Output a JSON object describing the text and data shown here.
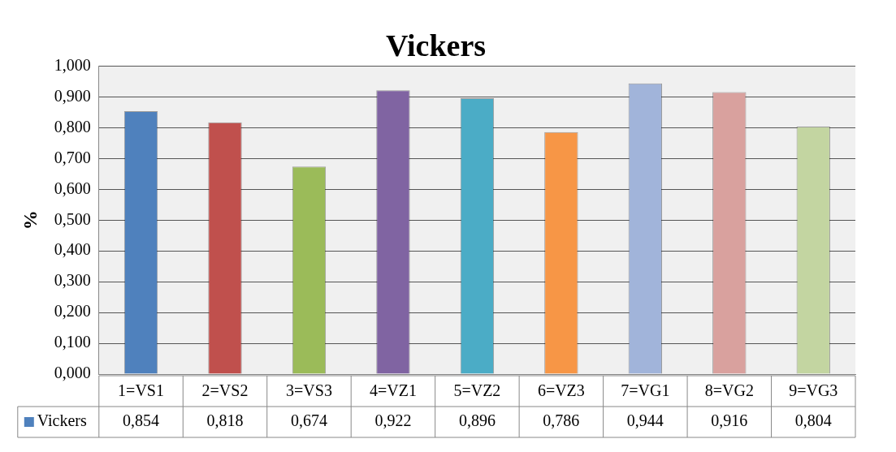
{
  "chart_data": {
    "type": "bar",
    "title": "Vickers",
    "ylabel": "%",
    "categories": [
      "1=VS1",
      "2=VS2",
      "3=VS3",
      "4=VZ1",
      "5=VZ2",
      "6=VZ3",
      "7=VG1",
      "8=VG2",
      "9=VG3"
    ],
    "series": [
      {
        "name": "Vickers",
        "color": "#4f81bd",
        "colors": [
          "#4f81bd",
          "#c0504d",
          "#9bbb59",
          "#8064a2",
          "#4bacc6",
          "#f79646",
          "#a1b4da",
          "#d9a19e",
          "#c3d5a1"
        ],
        "values": [
          0.854,
          0.818,
          0.674,
          0.922,
          0.896,
          0.786,
          0.944,
          0.916,
          0.804
        ],
        "value_labels": [
          "0,854",
          "0,818",
          "0,674",
          "0,922",
          "0,896",
          "0,786",
          "0,944",
          "0,916",
          "0,804"
        ]
      }
    ],
    "ylim": [
      0,
      1
    ],
    "yticks": [
      {
        "value": 0,
        "label": "0,000"
      },
      {
        "value": 0.1,
        "label": "0,100"
      },
      {
        "value": 0.2,
        "label": "0,200"
      },
      {
        "value": 0.3,
        "label": "0,300"
      },
      {
        "value": 0.4,
        "label": "0,400"
      },
      {
        "value": 0.5,
        "label": "0,500"
      },
      {
        "value": 0.6,
        "label": "0,600"
      },
      {
        "value": 0.7,
        "label": "0,700"
      },
      {
        "value": 0.8,
        "label": "0,800"
      },
      {
        "value": 0.9,
        "label": "0,900"
      },
      {
        "value": 1,
        "label": "1,000"
      }
    ],
    "grid": "y",
    "legend": "bottom left"
  }
}
